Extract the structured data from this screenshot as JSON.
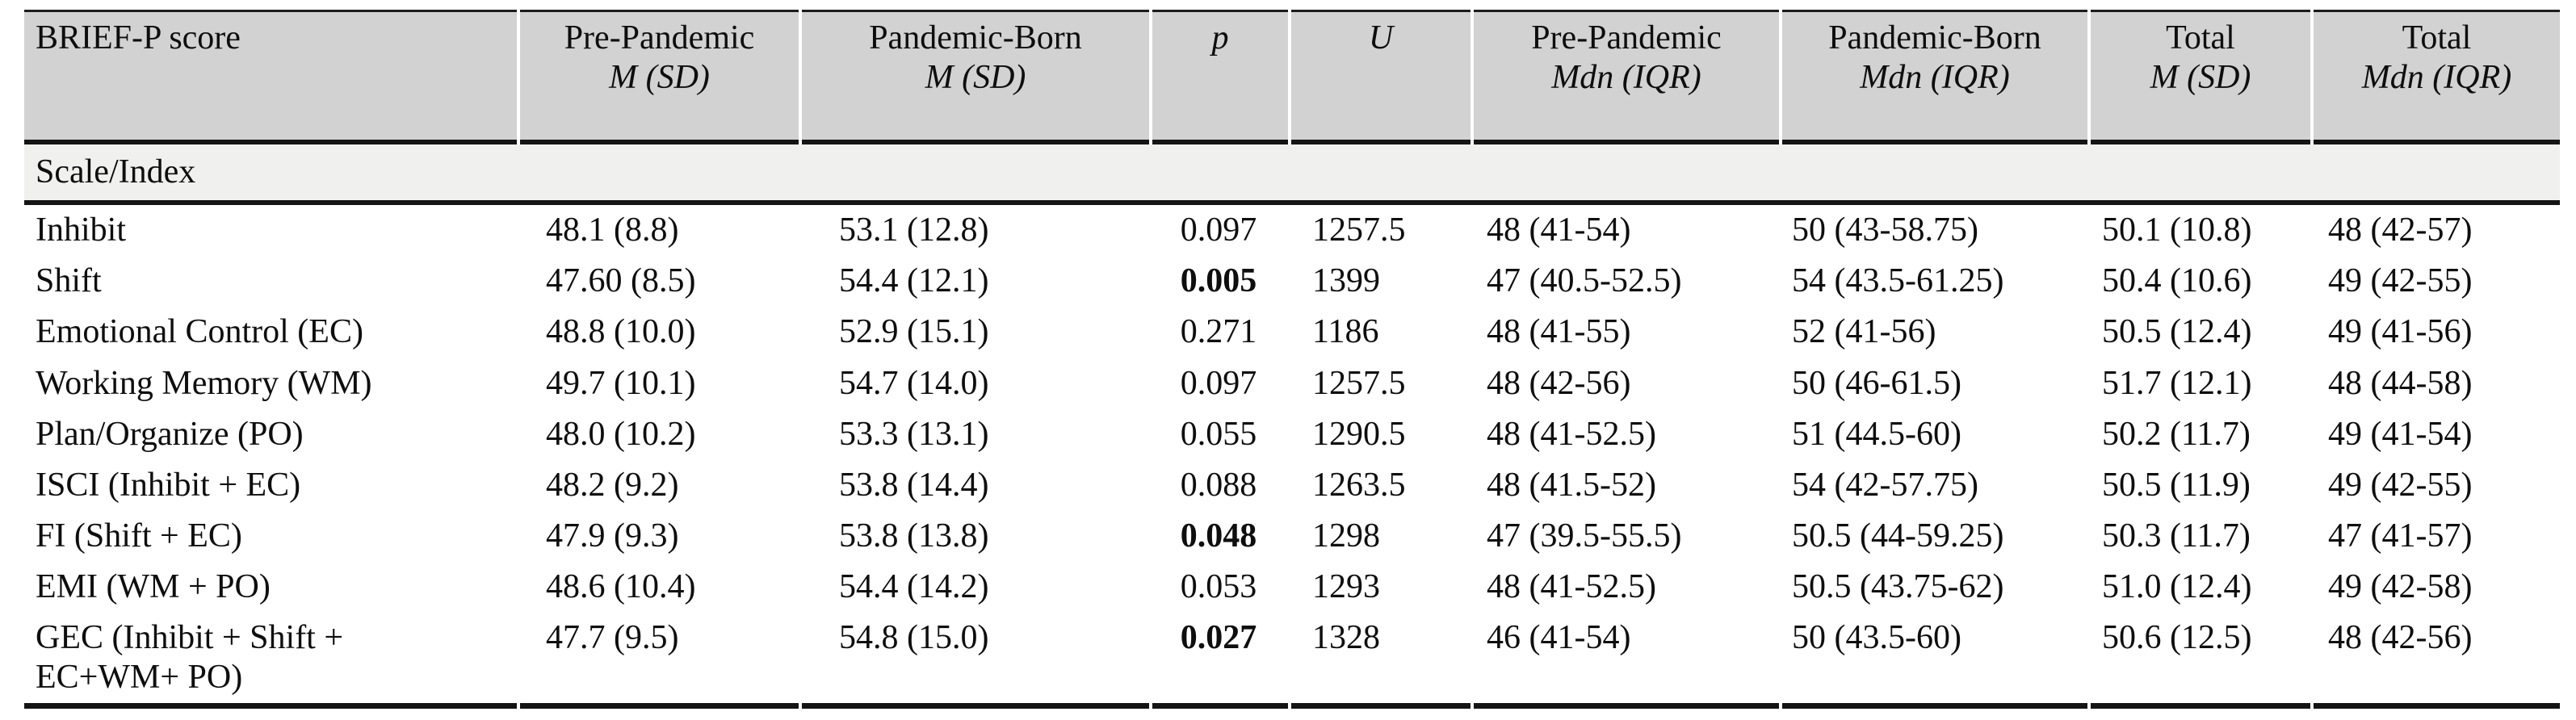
{
  "table": {
    "section_label": "Scale/Index",
    "columns": [
      {
        "id": "brief-p-score",
        "line1": "BRIEF-P score",
        "line2": "",
        "italic1": false
      },
      {
        "id": "pre-pandemic-m-sd",
        "line1": "Pre-Pandemic",
        "line2": "M (SD)",
        "italic1": false
      },
      {
        "id": "pandemic-born-m-sd",
        "line1": "Pandemic-Born",
        "line2": "M (SD)",
        "italic1": false
      },
      {
        "id": "p-value",
        "line1": "p",
        "line2": "",
        "italic1": true
      },
      {
        "id": "u-statistic",
        "line1": "U",
        "line2": "",
        "italic1": true
      },
      {
        "id": "pre-pandemic-mdn-iqr",
        "line1": "Pre-Pandemic",
        "line2": "Mdn (IQR)",
        "italic1": false
      },
      {
        "id": "pandemic-born-mdn-iqr",
        "line1": "Pandemic-Born",
        "line2": "Mdn (IQR)",
        "italic1": false
      },
      {
        "id": "total-m-sd",
        "line1": "Total",
        "line2": "M (SD)",
        "italic1": false
      },
      {
        "id": "total-mdn-iqr",
        "line1": "Total",
        "line2": "Mdn (IQR)",
        "italic1": false
      }
    ],
    "rows": [
      {
        "p_bold": false,
        "cells": [
          "Inhibit",
          "48.1 (8.8)",
          "53.1 (12.8)",
          "0.097",
          "1257.5",
          "48 (41-54)",
          "50 (43-58.75)",
          "50.1 (10.8)",
          "48 (42-57)"
        ]
      },
      {
        "p_bold": true,
        "cells": [
          "Shift",
          "47.60 (8.5)",
          "54.4 (12.1)",
          "0.005",
          "1399",
          "47 (40.5-52.5)",
          "54 (43.5-61.25)",
          "50.4 (10.6)",
          "49 (42-55)"
        ]
      },
      {
        "p_bold": false,
        "cells": [
          "Emotional Control (EC)",
          "48.8 (10.0)",
          "52.9 (15.1)",
          "0.271",
          "1186",
          "48 (41-55)",
          "52 (41-56)",
          "50.5 (12.4)",
          "49 (41-56)"
        ]
      },
      {
        "p_bold": false,
        "cells": [
          "Working Memory (WM)",
          "49.7 (10.1)",
          "54.7 (14.0)",
          "0.097",
          "1257.5",
          "48 (42-56)",
          "50 (46-61.5)",
          "51.7 (12.1)",
          "48 (44-58)"
        ]
      },
      {
        "p_bold": false,
        "cells": [
          "Plan/Organize (PO)",
          "48.0 (10.2)",
          "53.3 (13.1)",
          "0.055",
          "1290.5",
          "48 (41-52.5)",
          "51 (44.5-60)",
          "50.2 (11.7)",
          "49 (41-54)"
        ]
      },
      {
        "p_bold": false,
        "cells": [
          "ISCI (Inhibit + EC)",
          "48.2 (9.2)",
          "53.8 (14.4)",
          "0.088",
          "1263.5",
          "48 (41.5-52)",
          "54 (42-57.75)",
          "50.5 (11.9)",
          "49 (42-55)"
        ]
      },
      {
        "p_bold": true,
        "cells": [
          "FI (Shift + EC)",
          "47.9 (9.3)",
          "53.8 (13.8)",
          "0.048",
          "1298",
          "47 (39.5-55.5)",
          "50.5 (44-59.25)",
          "50.3 (11.7)",
          "47 (41-57)"
        ]
      },
      {
        "p_bold": false,
        "cells": [
          "EMI (WM + PO)",
          "48.6 (10.4)",
          "54.4 (14.2)",
          "0.053",
          "1293",
          "48 (41-52.5)",
          "50.5 (43.75-62)",
          "51.0 (12.4)",
          "49 (42-58)"
        ]
      },
      {
        "p_bold": true,
        "cells": [
          "GEC (Inhibit + Shift +\nEC+WM+ PO)",
          "47.7 (9.5)",
          "54.8 (15.0)",
          "0.027",
          "1328",
          "46 (41-54)",
          "50 (43.5-60)",
          "50.6 (12.5)",
          "48 (42-56)"
        ]
      }
    ]
  },
  "colors": {
    "header_background": "#d2d2d2",
    "section_row_background": "#f0f0ee",
    "border": "#141414",
    "text": "#0e0e0e",
    "page_background": "#ffffff"
  }
}
